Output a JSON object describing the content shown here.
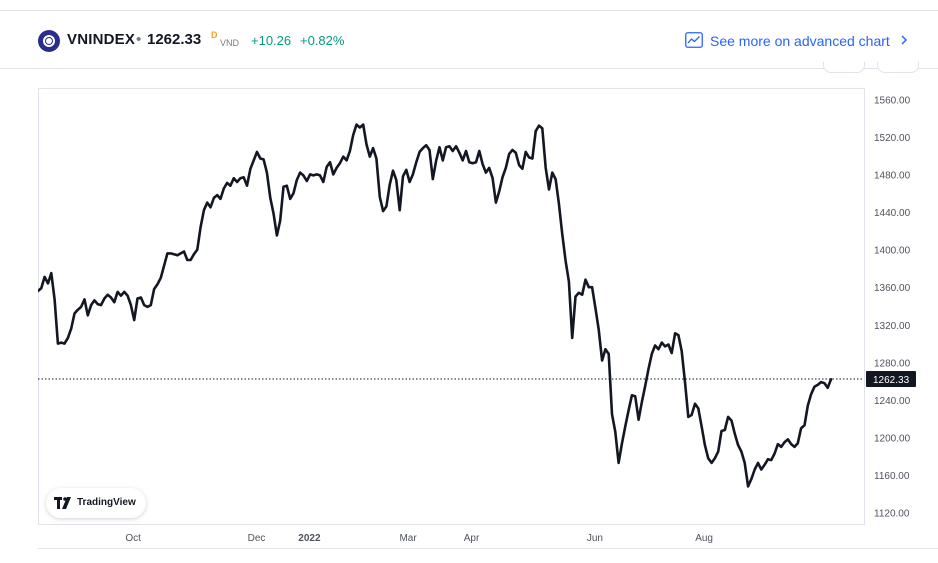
{
  "header": {
    "symbol": "VNINDEX",
    "separator": "•",
    "price": "1262.33",
    "price_flag": "D",
    "currency": "VND",
    "change": "+10.26",
    "change_percent": "+0.82%",
    "advanced_link_label": "See more on advanced chart",
    "icons": {
      "logo": "vnindex-logo",
      "advanced": "chart-line-icon",
      "chevron": "chevron-right-icon"
    }
  },
  "branding": {
    "label": "TradingView",
    "icon": "tradingview-logo-icon"
  },
  "colors": {
    "line": "#131722",
    "positive": "#089981",
    "link": "#2962ff",
    "grid": "#e0e3eb",
    "axis_text": "#50535e"
  },
  "chart_data": {
    "type": "line",
    "title": "",
    "xlabel": "",
    "ylabel": "",
    "x_ticks": [
      "Oct",
      "Dec",
      "2022",
      "Mar",
      "Apr",
      "Jun",
      "Aug"
    ],
    "y_ticks": [
      "1560.00",
      "1520.00",
      "1480.00",
      "1440.00",
      "1400.00",
      "1360.00",
      "1320.00",
      "1280.00",
      "1240.00",
      "1200.00",
      "1160.00",
      "1120.00"
    ],
    "ylim": [
      1108,
      1572
    ],
    "last_value": 1262.33,
    "last_value_label": "1262.33",
    "grid": false,
    "series": [
      {
        "values": [
          1356,
          1359,
          1371,
          1364,
          1375,
          1347,
          1300,
          1301,
          1300,
          1306,
          1316,
          1332,
          1336,
          1339,
          1347,
          1330,
          1341,
          1346,
          1342,
          1341,
          1348,
          1352,
          1349,
          1344,
          1355,
          1351,
          1355,
          1351,
          1341,
          1325,
          1348,
          1349,
          1341,
          1339,
          1341,
          1358,
          1363,
          1370,
          1383,
          1396,
          1396,
          1395,
          1394,
          1396,
          1398,
          1389,
          1389,
          1395,
          1400,
          1424,
          1442,
          1450,
          1445,
          1455,
          1458,
          1454,
          1465,
          1471,
          1468,
          1476,
          1472,
          1476,
          1477,
          1468,
          1486,
          1495,
          1504,
          1497,
          1496,
          1482,
          1455,
          1438,
          1415,
          1431,
          1467,
          1468,
          1454,
          1460,
          1474,
          1482,
          1479,
          1473,
          1480,
          1479,
          1480,
          1479,
          1472,
          1488,
          1493,
          1480,
          1487,
          1492,
          1499,
          1495,
          1505,
          1522,
          1533,
          1530,
          1533,
          1512,
          1499,
          1508,
          1497,
          1456,
          1441,
          1446,
          1469,
          1484,
          1474,
          1442,
          1478,
          1485,
          1472,
          1480,
          1493,
          1504,
          1508,
          1511,
          1506,
          1475,
          1495,
          1509,
          1495,
          1509,
          1510,
          1505,
          1510,
          1503,
          1495,
          1505,
          1493,
          1492,
          1493,
          1505,
          1491,
          1482,
          1487,
          1476,
          1450,
          1462,
          1477,
          1487,
          1502,
          1506,
          1503,
          1490,
          1486,
          1504,
          1498,
          1497,
          1526,
          1532,
          1529,
          1487,
          1464,
          1482,
          1475,
          1449,
          1417,
          1388,
          1366,
          1306,
          1350,
          1354,
          1352,
          1368,
          1360,
          1360,
          1338,
          1315,
          1282,
          1294,
          1289,
          1225,
          1206,
          1173,
          1194,
          1212,
          1229,
          1245,
          1244,
          1219,
          1238,
          1255,
          1273,
          1289,
          1298,
          1294,
          1301,
          1297,
          1299,
          1290,
          1311,
          1309,
          1292,
          1259,
          1222,
          1224,
          1236,
          1231,
          1212,
          1192,
          1178,
          1173,
          1178,
          1185,
          1207,
          1208,
          1222,
          1218,
          1204,
          1192,
          1185,
          1173,
          1148,
          1156,
          1166,
          1173,
          1166,
          1171,
          1177,
          1176,
          1183,
          1193,
          1190,
          1195,
          1198,
          1193,
          1190,
          1194,
          1210,
          1213,
          1234,
          1246,
          1254,
          1256,
          1259,
          1258,
          1253,
          1262
        ]
      }
    ]
  }
}
